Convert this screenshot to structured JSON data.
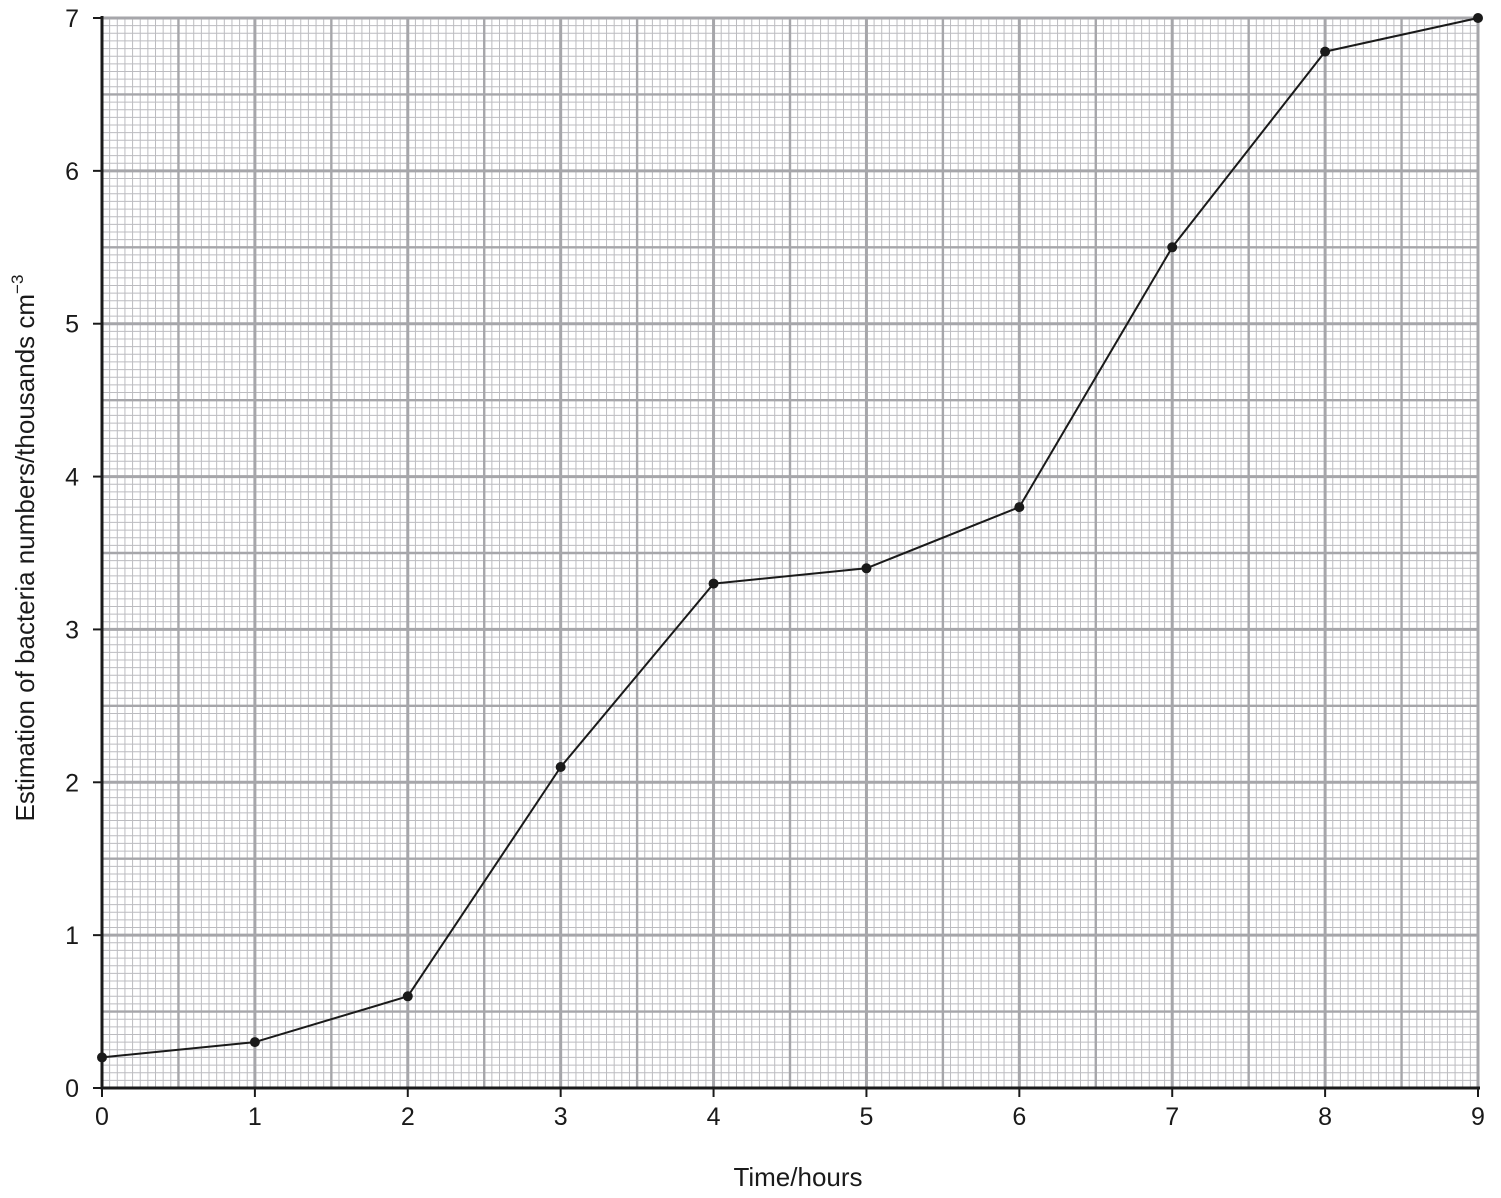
{
  "chart_data": {
    "type": "line",
    "title": "",
    "xlabel": "Time/hours",
    "ylabel": {
      "text": "Estimation of bacteria numbers/thousands cm",
      "superscript": "−3"
    },
    "xlim": [
      0,
      9
    ],
    "ylim": [
      0,
      7
    ],
    "x_ticks": [
      "0",
      "1",
      "2",
      "3",
      "4",
      "5",
      "6",
      "7",
      "8",
      "9"
    ],
    "y_ticks": [
      "0",
      "1",
      "2",
      "3",
      "4",
      "5",
      "6",
      "7"
    ],
    "grid": true,
    "series": [
      {
        "x": [
          0,
          1,
          2,
          3,
          4,
          5,
          6,
          7,
          8,
          9
        ],
        "y": [
          0.2,
          0.3,
          0.6,
          2.1,
          3.3,
          3.4,
          3.8,
          5.5,
          6.78,
          7.0
        ]
      }
    ],
    "colors": {
      "line": "#1a1a1a",
      "marker": "#1a1a1a",
      "grid_major": "#a6a6aa",
      "grid_minor": "#bcbcc0",
      "axis": "#1a1a1a"
    }
  }
}
